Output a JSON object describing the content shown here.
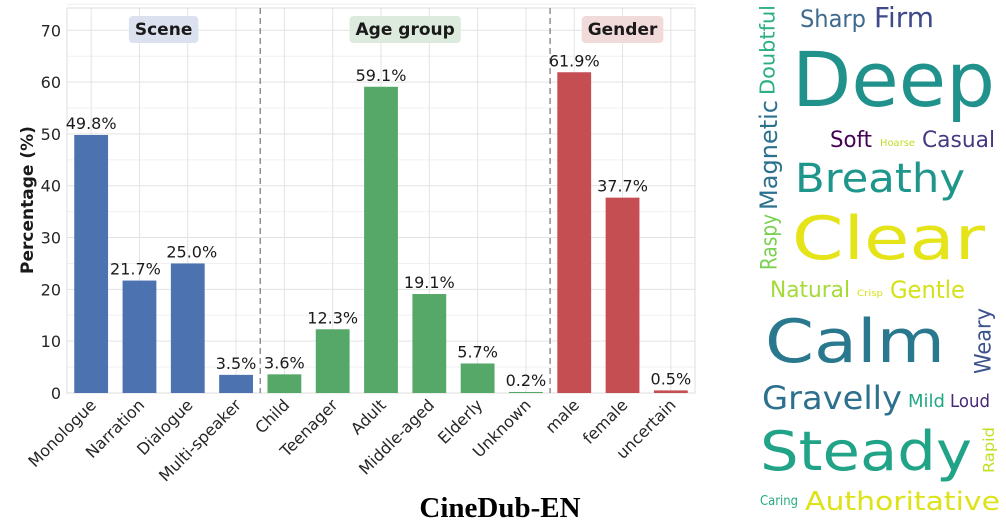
{
  "chart_data": [
    {
      "type": "bar",
      "title": "CineDub-EN",
      "ylabel": "Percentage (%)",
      "xlabel": "",
      "ylim": [
        0,
        74.3
      ],
      "yticks": [
        0,
        10,
        20,
        30,
        40,
        50,
        60,
        70
      ],
      "grid": true,
      "categories": [
        "Monologue",
        "Narration",
        "Dialogue",
        "Multi-speaker",
        "Child",
        "Teenager",
        "Adult",
        "Middle-aged",
        "Elderly",
        "Unknown",
        "male",
        "female",
        "uncertain"
      ],
      "values": [
        49.8,
        21.7,
        25.0,
        3.5,
        3.6,
        12.3,
        59.1,
        19.1,
        5.7,
        0.2,
        61.9,
        37.7,
        0.5
      ],
      "data_labels": [
        "49.8%",
        "21.7%",
        "25.0%",
        "3.5%",
        "3.6%",
        "12.3%",
        "59.1%",
        "19.1%",
        "5.7%",
        "0.2%",
        "61.9%",
        "37.7%",
        "0.5%"
      ],
      "groups": [
        {
          "label": "Scene",
          "range": [
            0,
            3
          ],
          "color": "#4c72b0",
          "label_bg": "#dbe1ef"
        },
        {
          "label": "Age group",
          "range": [
            4,
            9
          ],
          "color": "#55a868",
          "label_bg": "#dcebdd"
        },
        {
          "label": "Gender",
          "range": [
            10,
            12
          ],
          "color": "#c44e52",
          "label_bg": "#f0dada"
        }
      ]
    },
    {
      "type": "wordcloud",
      "words": [
        {
          "text": "Deep",
          "color": "#21918c"
        },
        {
          "text": "Sharp",
          "color": "#3e6a8e"
        },
        {
          "text": "Firm",
          "color": "#3e4a89"
        },
        {
          "text": "Doubtful",
          "color": "#2ab07f"
        },
        {
          "text": "Soft",
          "color": "#440154"
        },
        {
          "text": "Breathy",
          "color": "#1f968b"
        },
        {
          "text": "Magnetic",
          "color": "#2c728e"
        },
        {
          "text": "Raspy",
          "color": "#7ad151"
        },
        {
          "text": "Hoarse",
          "color": "#bddf26"
        },
        {
          "text": "Casual",
          "color": "#443a83"
        },
        {
          "text": "Clear",
          "color": "#e5e419"
        },
        {
          "text": "Natural",
          "color": "#a5db36"
        },
        {
          "text": "Gentle",
          "color": "#d5e21a"
        },
        {
          "text": "Crisp",
          "color": "#d8e219"
        },
        {
          "text": "Calm",
          "color": "#2a788e"
        },
        {
          "text": "Weary",
          "color": "#3b528b"
        },
        {
          "text": "Rapid",
          "color": "#c2df23"
        },
        {
          "text": "Gravelly",
          "color": "#2d708e"
        },
        {
          "text": "Mild",
          "color": "#22a884"
        },
        {
          "text": "Loud",
          "color": "#482878"
        },
        {
          "text": "Steady",
          "color": "#20a386"
        },
        {
          "text": "Caring",
          "color": "#27ad81"
        },
        {
          "text": "Authoritative",
          "color": "#dde318"
        }
      ]
    }
  ]
}
